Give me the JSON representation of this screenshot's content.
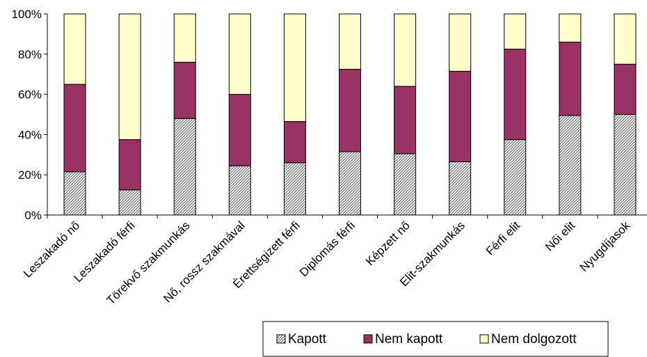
{
  "chart_data": {
    "type": "bar",
    "stacked": true,
    "percent": true,
    "categories": [
      "Leszakadó nő",
      "Leszakadó férfi",
      "Törekvő szakmunkás",
      "Nő, rossz szakmával",
      "Érettségizett férfi",
      "Diplomás férfi",
      "Képzett nő",
      "Elit-szakmunkás",
      "Férfi elit",
      "Női elit",
      "Nyugdíjasok"
    ],
    "series": [
      {
        "name": "Kapott",
        "color": "#d9d9d9",
        "pattern": "diagonal-hatch",
        "values": [
          21.5,
          12.5,
          48,
          24.5,
          26,
          31.5,
          30.5,
          26.5,
          37.5,
          49.5,
          50
        ]
      },
      {
        "name": "Nem kapott",
        "color": "#993366",
        "values": [
          43.5,
          25,
          28,
          35.5,
          20.5,
          41,
          33.5,
          45,
          45,
          36.5,
          25
        ]
      },
      {
        "name": "Nem dolgozott",
        "color": "#ffffcc",
        "values": [
          35,
          62.5,
          24,
          40,
          53.5,
          27.5,
          36,
          28.5,
          17.5,
          14,
          25
        ]
      }
    ],
    "y_ticks": [
      "0%",
      "20%",
      "40%",
      "60%",
      "80%",
      "100%"
    ],
    "ylim": [
      0,
      100
    ],
    "legend_position": "bottom-right",
    "grid": false
  }
}
